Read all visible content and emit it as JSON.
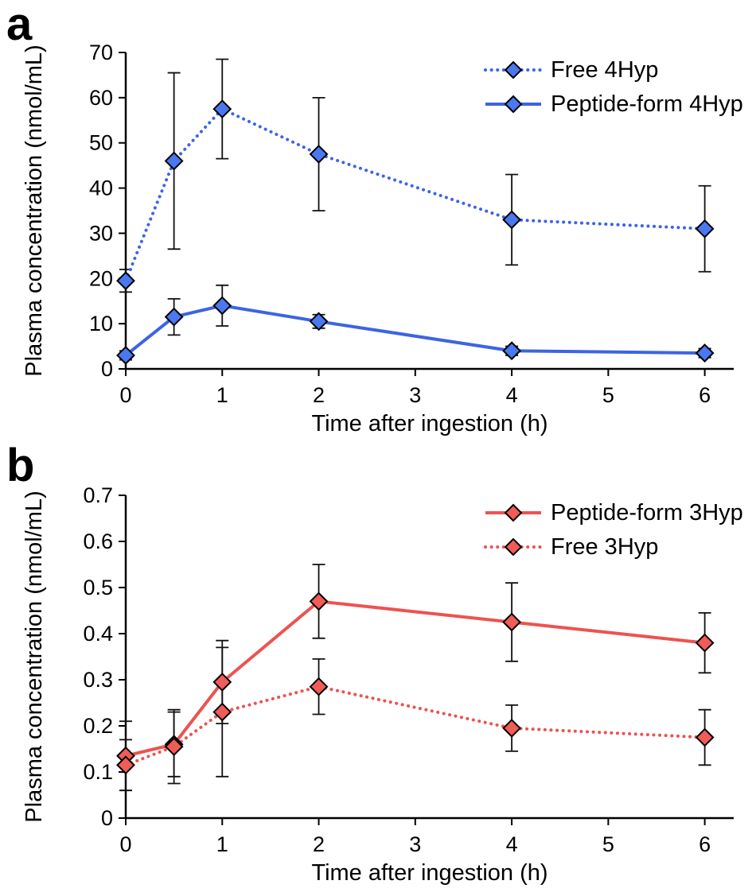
{
  "chart_data": [
    {
      "panel_label": "a",
      "type": "line",
      "x": [
        0,
        0.5,
        1,
        2,
        4,
        6
      ],
      "xticks": [
        0,
        1,
        2,
        3,
        4,
        5,
        6
      ],
      "xlim": [
        0,
        6.3
      ],
      "ylim": [
        0,
        70
      ],
      "ytick_step": 10,
      "ytick_decimals": 0,
      "xlabel": "Time after ingestion (h)",
      "ylabel": "Plasma concentration (nmol/mL)",
      "grid": false,
      "legend_position": "top-right-inside",
      "accent_color": "#3c64e4",
      "series": [
        {
          "name": "Free 4Hyp",
          "line_style": "dotted",
          "color": "#3c64e4",
          "marker_fill": "#4a78f0",
          "marker": "diamond",
          "values": [
            19.5,
            46,
            57.5,
            47.5,
            33,
            31
          ],
          "errors": [
            2.5,
            19.5,
            11,
            12.5,
            10,
            9.5
          ]
        },
        {
          "name": "Peptide-form 4Hyp",
          "line_style": "solid",
          "color": "#3c64e4",
          "marker_fill": "#4a78f0",
          "marker": "diamond",
          "values": [
            3,
            11.5,
            14,
            10.5,
            4,
            3.5
          ],
          "errors": [
            1,
            4,
            4.5,
            1.5,
            1,
            1
          ]
        }
      ]
    },
    {
      "panel_label": "b",
      "type": "line",
      "x": [
        0,
        0.5,
        1,
        2,
        4,
        6
      ],
      "xticks": [
        0,
        1,
        2,
        3,
        4,
        5,
        6
      ],
      "xlim": [
        0,
        6.3
      ],
      "ylim": [
        0,
        0.7
      ],
      "ytick_step": 0.1,
      "ytick_decimals": 1,
      "xlabel": "Time after ingestion (h)",
      "ylabel": "Plasma concentration (nmol/mL)",
      "grid": false,
      "legend_position": "top-right-inside",
      "accent_color": "#ec5350",
      "series": [
        {
          "name": "Peptide-form 3Hyp",
          "line_style": "solid",
          "color": "#ec5350",
          "marker_fill": "#f05c58",
          "marker": "diamond",
          "values": [
            0.135,
            0.16,
            0.295,
            0.47,
            0.425,
            0.38
          ],
          "errors": [
            0.075,
            0.07,
            0.09,
            0.08,
            0.085,
            0.065
          ]
        },
        {
          "name": "Free 3Hyp",
          "line_style": "dotted",
          "color": "#ec5350",
          "marker_fill": "#f05c58",
          "marker": "diamond",
          "values": [
            0.115,
            0.155,
            0.23,
            0.285,
            0.195,
            0.175
          ],
          "errors": [
            0.055,
            0.08,
            0.14,
            0.06,
            0.05,
            0.06
          ]
        }
      ]
    }
  ]
}
